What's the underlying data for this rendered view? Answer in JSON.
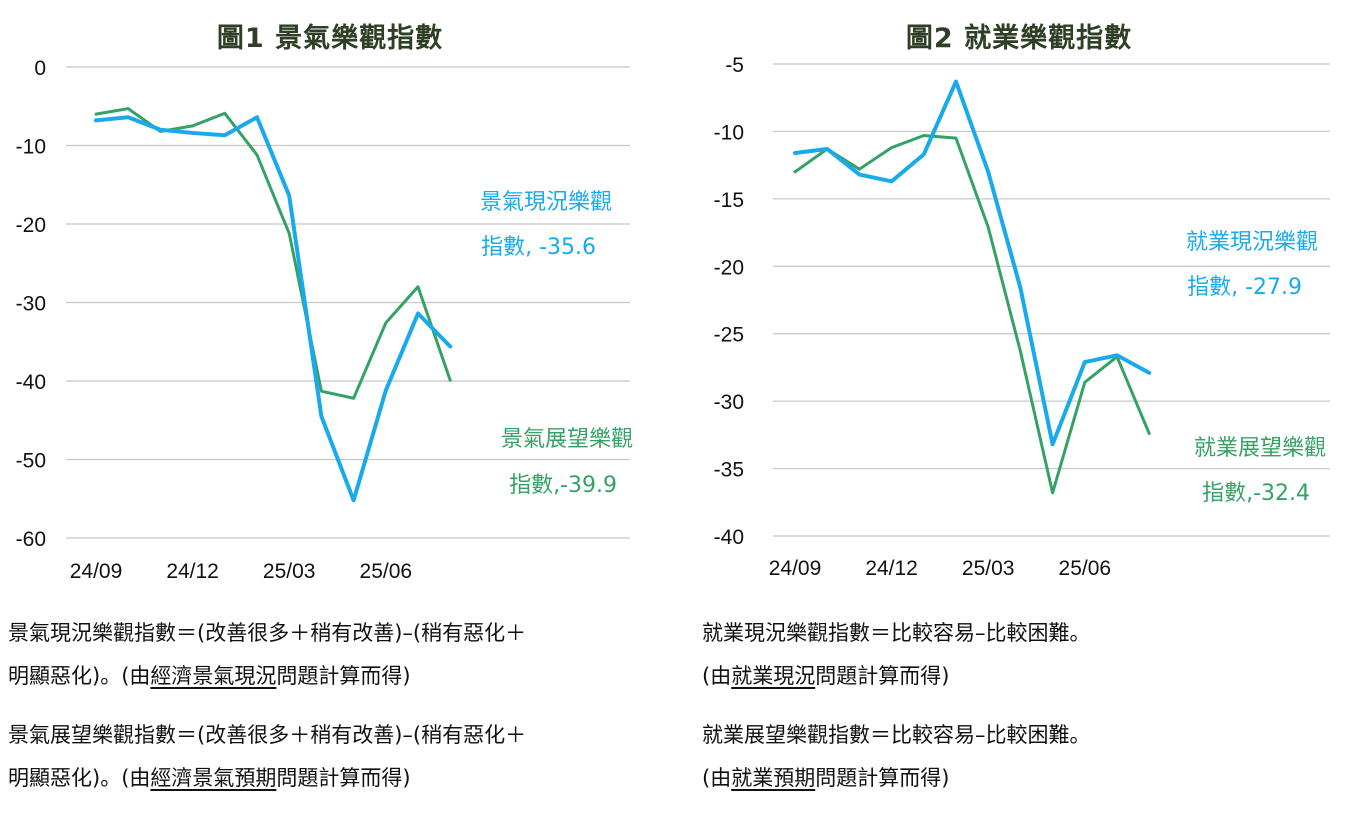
{
  "charts": [
    {
      "title": "圖1  景氣樂觀指數",
      "chart_data": {
        "type": "line",
        "x": [
          "24/09",
          "24/10",
          "24/11",
          "24/12",
          "25/01",
          "25/02",
          "25/03",
          "25/04",
          "25/05",
          "25/06",
          "25/07",
          "25/08"
        ],
        "xticks": [
          "24/09",
          "24/12",
          "25/03",
          "25/06"
        ],
        "ylim": [
          -60,
          0
        ],
        "yticks": [
          0,
          -10,
          -20,
          -30,
          -40,
          -50,
          -60
        ],
        "grid": true,
        "series": [
          {
            "name": "景氣現況樂觀指數",
            "color": "#19aaed",
            "values": [
              -6.8,
              -6.4,
              -8.0,
              -8.4,
              -8.7,
              -6.4,
              -16.4,
              -44.5,
              -55.2,
              -41.2,
              -31.4,
              -35.6
            ]
          },
          {
            "name": "景氣展望樂觀指數",
            "color": "#35a265",
            "values": [
              -6.0,
              -5.3,
              -8.2,
              -7.5,
              -5.9,
              -11.2,
              -21.2,
              -41.3,
              -42.2,
              -32.6,
              -28.0,
              -39.9
            ]
          }
        ],
        "annotations": [
          {
            "series": 0,
            "line1": "景氣現況樂觀",
            "line2": "指數, -35.6"
          },
          {
            "series": 1,
            "line1": "景氣展望樂觀",
            "line2": "指數,-39.9"
          }
        ]
      }
    },
    {
      "title": "圖2  就業樂觀指數",
      "chart_data": {
        "type": "line",
        "x": [
          "24/09",
          "24/10",
          "24/11",
          "24/12",
          "25/01",
          "25/02",
          "25/03",
          "25/04",
          "25/05",
          "25/06",
          "25/07",
          "25/08"
        ],
        "xticks": [
          "24/09",
          "24/12",
          "25/03",
          "25/06"
        ],
        "ylim": [
          -40,
          -5
        ],
        "yticks": [
          -5,
          -10,
          -15,
          -20,
          -25,
          -30,
          -35,
          -40
        ],
        "grid": true,
        "series": [
          {
            "name": "就業現況樂觀指數",
            "color": "#19aaed",
            "values": [
              -11.6,
              -11.3,
              -13.2,
              -13.7,
              -11.7,
              -6.3,
              -13.0,
              -21.6,
              -33.2,
              -27.1,
              -26.6,
              -27.9
            ]
          },
          {
            "name": "就業展望樂觀指數",
            "color": "#35a265",
            "values": [
              -13.0,
              -11.3,
              -12.8,
              -11.2,
              -10.3,
              -10.5,
              -17.1,
              -26.3,
              -36.8,
              -28.6,
              -26.7,
              -32.4
            ]
          }
        ],
        "annotations": [
          {
            "series": 0,
            "line1": "就業現況樂觀",
            "line2": "指數, -27.9"
          },
          {
            "series": 1,
            "line1": "就業展望樂觀",
            "line2": "指數,-32.4"
          }
        ]
      }
    }
  ],
  "notes": {
    "n1a": {
      "l1": "景氣現況樂觀指數＝(改善很多＋稍有改善)–(稍有惡化＋",
      "l2pre": "明顯惡化)。(由",
      "l2u": "經濟景氣現況",
      "l2post": "問題計算而得)"
    },
    "n1b": {
      "l1": "景氣展望樂觀指數＝(改善很多＋稍有改善)–(稍有惡化＋",
      "l2pre": "明顯惡化)。(由",
      "l2u": "經濟景氣預期",
      "l2post": "問題計算而得)"
    },
    "n2a": {
      "l1": "就業現況樂觀指數＝比較容易–比較困難。",
      "l2pre": "(由",
      "l2u": "就業現況",
      "l2post": "問題計算而得)"
    },
    "n2b": {
      "l1": "就業展望樂觀指數＝比較容易–比較困難。",
      "l2pre": "(由",
      "l2u": "就業預期",
      "l2post": "問題計算而得)"
    }
  }
}
